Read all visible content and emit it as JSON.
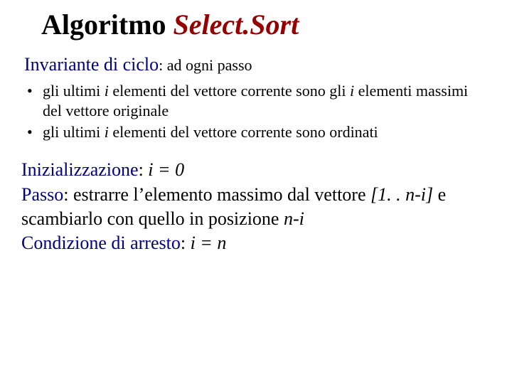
{
  "colors": {
    "background": "#ffffff",
    "text": "#000000",
    "accent_red": "#960000",
    "accent_blue": "#000080"
  },
  "typography": {
    "family": "Times New Roman, serif",
    "title_fontsize": 40,
    "subhead_fontsize": 26,
    "subhead_suffix_fontsize": 22,
    "bullet_fontsize": 22,
    "body_fontsize": 26
  },
  "title": {
    "prefix": "Algoritmo",
    "name_part1": "Select.",
    "name_part2": "Sort"
  },
  "invariant": {
    "label": "Invariante di ciclo",
    "suffix": ": ad ogni passo",
    "bullets": {
      "b1": {
        "t1": "gli ultimi ",
        "i1": "i",
        "t2": " elementi del vettore corrente sono gli ",
        "i2": "i",
        "t3": " elementi massimi del vettore originale"
      },
      "b2": {
        "t1": "gli ultimi ",
        "i1": "i",
        "t2": " elementi del vettore corrente sono ordinati"
      }
    }
  },
  "sections": {
    "init": {
      "label": "Inizializzazione",
      "sep": ": ",
      "expr": "i = 0"
    },
    "step": {
      "label": "Passo",
      "sep": ": ",
      "t1": "estrarre l’elemento massimo dal vettore ",
      "range": "[1. . n-i]",
      "t2": " e scambiarlo con quello in posizione ",
      "expr": "n-i"
    },
    "stop": {
      "label": "Condizione di arresto",
      "sep": ": ",
      "expr": "i = n"
    }
  }
}
